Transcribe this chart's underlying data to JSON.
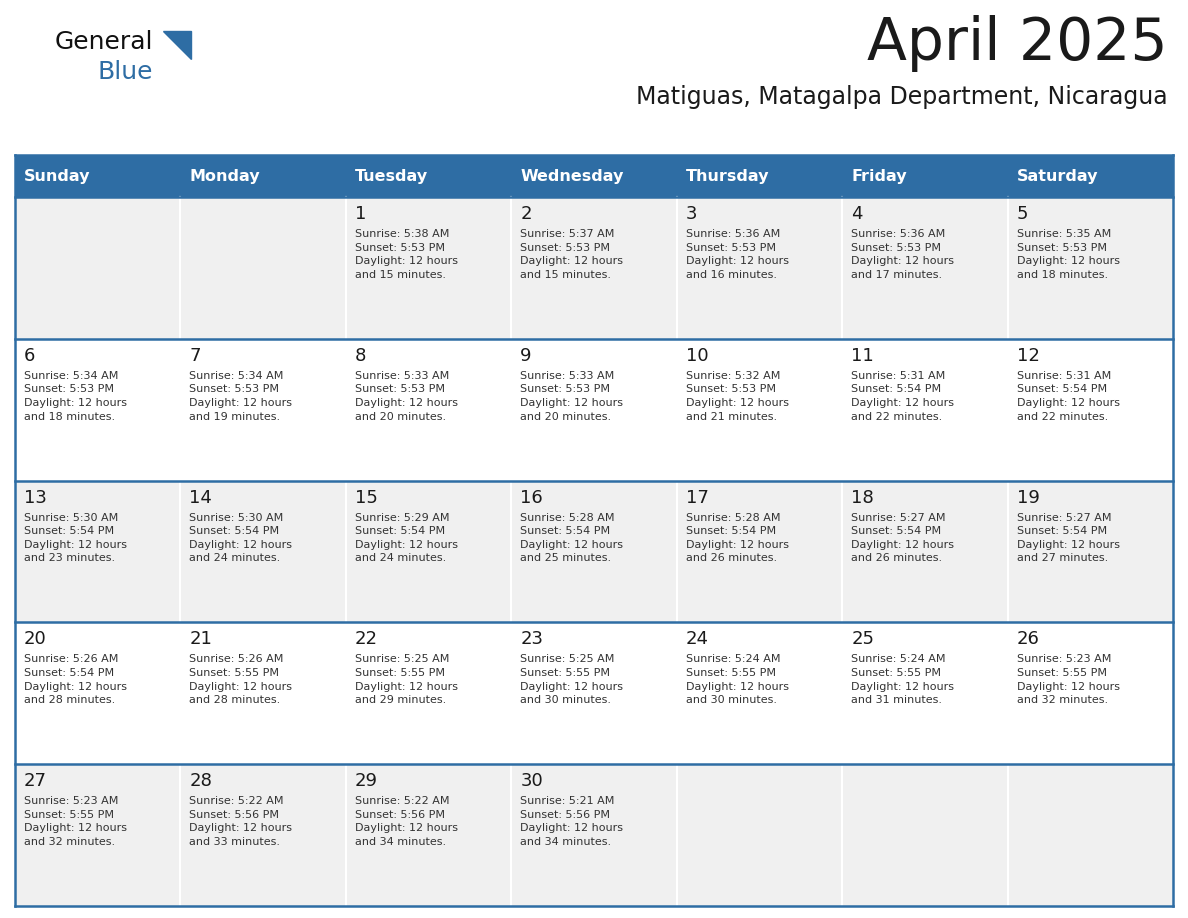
{
  "title": "April 2025",
  "subtitle": "Matiguas, Matagalpa Department, Nicaragua",
  "days_of_week": [
    "Sunday",
    "Monday",
    "Tuesday",
    "Wednesday",
    "Thursday",
    "Friday",
    "Saturday"
  ],
  "header_bg_color": "#2E6DA4",
  "header_text_color": "#FFFFFF",
  "row_colors": [
    "#F0F0F0",
    "#FFFFFF",
    "#F0F0F0",
    "#FFFFFF",
    "#F0F0F0"
  ],
  "border_color": "#2E6DA4",
  "title_color": "#1a1a1a",
  "subtitle_color": "#1a1a1a",
  "text_color": "#333333",
  "day_number_color": "#1a1a1a",
  "logo_general_color": "#111111",
  "logo_blue_color": "#2E6DA4",
  "calendar_data": [
    [
      {
        "day": "",
        "info": ""
      },
      {
        "day": "",
        "info": ""
      },
      {
        "day": "1",
        "info": "Sunrise: 5:38 AM\nSunset: 5:53 PM\nDaylight: 12 hours\nand 15 minutes."
      },
      {
        "day": "2",
        "info": "Sunrise: 5:37 AM\nSunset: 5:53 PM\nDaylight: 12 hours\nand 15 minutes."
      },
      {
        "day": "3",
        "info": "Sunrise: 5:36 AM\nSunset: 5:53 PM\nDaylight: 12 hours\nand 16 minutes."
      },
      {
        "day": "4",
        "info": "Sunrise: 5:36 AM\nSunset: 5:53 PM\nDaylight: 12 hours\nand 17 minutes."
      },
      {
        "day": "5",
        "info": "Sunrise: 5:35 AM\nSunset: 5:53 PM\nDaylight: 12 hours\nand 18 minutes."
      }
    ],
    [
      {
        "day": "6",
        "info": "Sunrise: 5:34 AM\nSunset: 5:53 PM\nDaylight: 12 hours\nand 18 minutes."
      },
      {
        "day": "7",
        "info": "Sunrise: 5:34 AM\nSunset: 5:53 PM\nDaylight: 12 hours\nand 19 minutes."
      },
      {
        "day": "8",
        "info": "Sunrise: 5:33 AM\nSunset: 5:53 PM\nDaylight: 12 hours\nand 20 minutes."
      },
      {
        "day": "9",
        "info": "Sunrise: 5:33 AM\nSunset: 5:53 PM\nDaylight: 12 hours\nand 20 minutes."
      },
      {
        "day": "10",
        "info": "Sunrise: 5:32 AM\nSunset: 5:53 PM\nDaylight: 12 hours\nand 21 minutes."
      },
      {
        "day": "11",
        "info": "Sunrise: 5:31 AM\nSunset: 5:54 PM\nDaylight: 12 hours\nand 22 minutes."
      },
      {
        "day": "12",
        "info": "Sunrise: 5:31 AM\nSunset: 5:54 PM\nDaylight: 12 hours\nand 22 minutes."
      }
    ],
    [
      {
        "day": "13",
        "info": "Sunrise: 5:30 AM\nSunset: 5:54 PM\nDaylight: 12 hours\nand 23 minutes."
      },
      {
        "day": "14",
        "info": "Sunrise: 5:30 AM\nSunset: 5:54 PM\nDaylight: 12 hours\nand 24 minutes."
      },
      {
        "day": "15",
        "info": "Sunrise: 5:29 AM\nSunset: 5:54 PM\nDaylight: 12 hours\nand 24 minutes."
      },
      {
        "day": "16",
        "info": "Sunrise: 5:28 AM\nSunset: 5:54 PM\nDaylight: 12 hours\nand 25 minutes."
      },
      {
        "day": "17",
        "info": "Sunrise: 5:28 AM\nSunset: 5:54 PM\nDaylight: 12 hours\nand 26 minutes."
      },
      {
        "day": "18",
        "info": "Sunrise: 5:27 AM\nSunset: 5:54 PM\nDaylight: 12 hours\nand 26 minutes."
      },
      {
        "day": "19",
        "info": "Sunrise: 5:27 AM\nSunset: 5:54 PM\nDaylight: 12 hours\nand 27 minutes."
      }
    ],
    [
      {
        "day": "20",
        "info": "Sunrise: 5:26 AM\nSunset: 5:54 PM\nDaylight: 12 hours\nand 28 minutes."
      },
      {
        "day": "21",
        "info": "Sunrise: 5:26 AM\nSunset: 5:55 PM\nDaylight: 12 hours\nand 28 minutes."
      },
      {
        "day": "22",
        "info": "Sunrise: 5:25 AM\nSunset: 5:55 PM\nDaylight: 12 hours\nand 29 minutes."
      },
      {
        "day": "23",
        "info": "Sunrise: 5:25 AM\nSunset: 5:55 PM\nDaylight: 12 hours\nand 30 minutes."
      },
      {
        "day": "24",
        "info": "Sunrise: 5:24 AM\nSunset: 5:55 PM\nDaylight: 12 hours\nand 30 minutes."
      },
      {
        "day": "25",
        "info": "Sunrise: 5:24 AM\nSunset: 5:55 PM\nDaylight: 12 hours\nand 31 minutes."
      },
      {
        "day": "26",
        "info": "Sunrise: 5:23 AM\nSunset: 5:55 PM\nDaylight: 12 hours\nand 32 minutes."
      }
    ],
    [
      {
        "day": "27",
        "info": "Sunrise: 5:23 AM\nSunset: 5:55 PM\nDaylight: 12 hours\nand 32 minutes."
      },
      {
        "day": "28",
        "info": "Sunrise: 5:22 AM\nSunset: 5:56 PM\nDaylight: 12 hours\nand 33 minutes."
      },
      {
        "day": "29",
        "info": "Sunrise: 5:22 AM\nSunset: 5:56 PM\nDaylight: 12 hours\nand 34 minutes."
      },
      {
        "day": "30",
        "info": "Sunrise: 5:21 AM\nSunset: 5:56 PM\nDaylight: 12 hours\nand 34 minutes."
      },
      {
        "day": "",
        "info": ""
      },
      {
        "day": "",
        "info": ""
      },
      {
        "day": "",
        "info": ""
      }
    ]
  ]
}
